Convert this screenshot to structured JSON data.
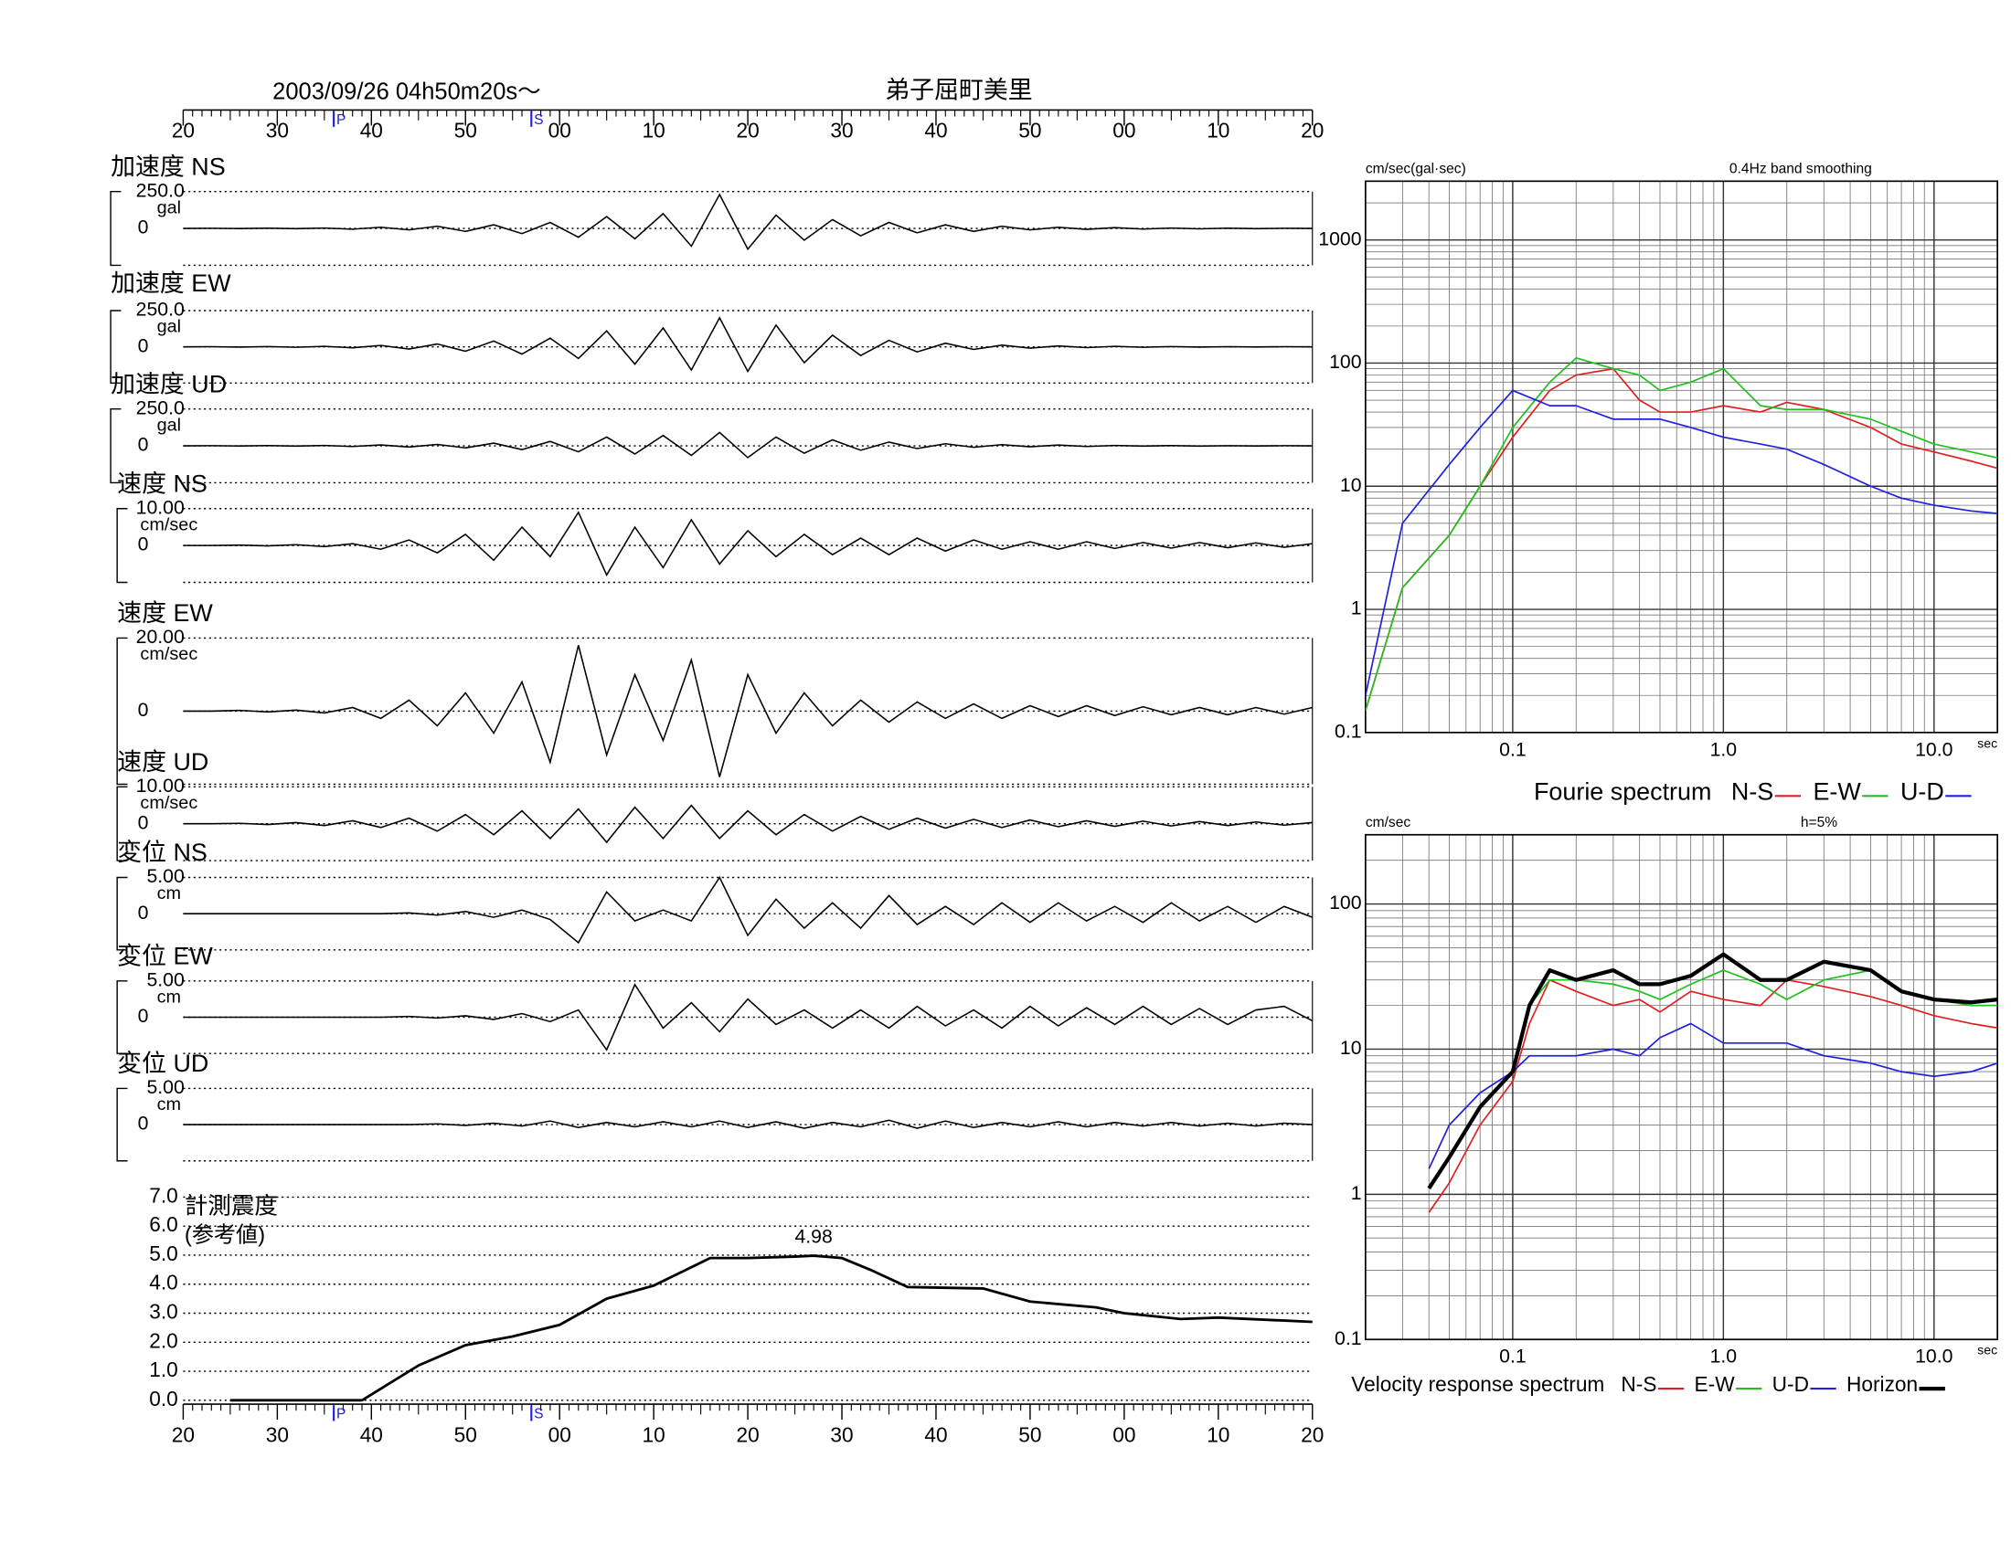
{
  "chart_data": [
    {
      "type": "waveform",
      "title": "2003/09/26  04h50m20s〜",
      "location": "弟子屈町美里",
      "xlim": [
        20,
        140
      ],
      "xticks": [
        20,
        30,
        40,
        50,
        {
          "value": 60,
          "label": "00"
        },
        {
          "value": 70,
          "label": "10"
        },
        {
          "value": 80,
          "label": "20"
        },
        {
          "value": 90,
          "label": "30"
        },
        {
          "value": 100,
          "label": "40"
        },
        {
          "value": 110,
          "label": "50"
        },
        {
          "value": 120,
          "label": "00"
        },
        {
          "value": 130,
          "label": "10"
        },
        {
          "value": 140,
          "label": "20"
        }
      ],
      "phases": [
        {
          "label": "P",
          "x": 36
        },
        {
          "label": "S",
          "x": 57
        }
      ],
      "x": [
        20,
        23,
        26,
        29,
        32,
        35,
        38,
        41,
        44,
        47,
        50,
        53,
        56,
        59,
        62,
        65,
        68,
        71,
        74,
        77,
        80,
        83,
        86,
        89,
        92,
        95,
        98,
        101,
        104,
        107,
        110,
        113,
        116,
        119,
        122,
        125,
        128,
        131,
        134,
        137,
        140
      ],
      "panels": [
        {
          "name": "加速度 NS",
          "unit": "gal",
          "ylim": [
            -250,
            250
          ],
          "yticks": [
            0,
            {
              "value": 250,
              "label": "250.0"
            }
          ],
          "values": [
            0,
            1,
            -1,
            2,
            -2,
            3,
            -5,
            8,
            -10,
            15,
            -20,
            25,
            -35,
            40,
            -60,
            80,
            -70,
            100,
            -120,
            230,
            -140,
            90,
            -80,
            60,
            -50,
            40,
            -30,
            25,
            -20,
            15,
            -10,
            8,
            -6,
            5,
            -4,
            3,
            -3,
            2,
            -2,
            1,
            0
          ]
        },
        {
          "name": "加速度 EW",
          "unit": "gal",
          "ylim": [
            -250,
            250
          ],
          "yticks": [
            0,
            {
              "value": 250,
              "label": "250.0"
            }
          ],
          "values": [
            0,
            1,
            -2,
            2,
            -3,
            4,
            -6,
            10,
            -15,
            20,
            -30,
            40,
            -50,
            60,
            -80,
            110,
            -120,
            130,
            -160,
            200,
            -170,
            150,
            -110,
            80,
            -60,
            45,
            -35,
            25,
            -18,
            12,
            -9,
            6,
            -5,
            4,
            -3,
            2,
            -2,
            1,
            -1,
            1,
            0
          ]
        },
        {
          "name": "加速度 UD",
          "unit": "gal",
          "ylim": [
            -250,
            250
          ],
          "yticks": [
            0,
            {
              "value": 250,
              "label": "250.0"
            }
          ],
          "values": [
            0,
            1,
            -1,
            2,
            -2,
            3,
            -4,
            6,
            -8,
            10,
            -14,
            18,
            -25,
            30,
            -40,
            60,
            -55,
            70,
            -65,
            90,
            -80,
            60,
            -50,
            40,
            -30,
            25,
            -18,
            14,
            -10,
            8,
            -6,
            5,
            -4,
            3,
            -2,
            2,
            -2,
            1,
            -1,
            1,
            0
          ]
        },
        {
          "name": "速度 NS",
          "unit": "cm/sec",
          "ylim": [
            -10,
            10
          ],
          "yticks": [
            0,
            {
              "value": 10,
              "label": "10.00"
            }
          ],
          "values": [
            0,
            0,
            0.1,
            -0.1,
            0.2,
            -0.3,
            0.5,
            -1,
            1.5,
            -2,
            3,
            -4,
            5,
            -3,
            9,
            -8,
            5,
            -6,
            7,
            -5,
            4,
            -3,
            3,
            -2.5,
            2,
            -2.5,
            2,
            -1.5,
            1.5,
            -1,
            1,
            -1,
            1,
            -0.8,
            0.8,
            -0.7,
            0.8,
            -0.6,
            0.7,
            -0.5,
            0.5
          ]
        },
        {
          "name": "速度 EW",
          "unit": "cm/sec",
          "ylim": [
            -20,
            20
          ],
          "yticks": [
            0,
            {
              "value": 20,
              "label": "20.00"
            }
          ],
          "values": [
            0,
            0,
            0.2,
            -0.2,
            0.3,
            -0.5,
            1,
            -2,
            3,
            -4,
            5,
            -6,
            8,
            -14,
            18,
            -12,
            10,
            -8,
            14,
            -18,
            10,
            -6,
            5,
            -4,
            3,
            -3,
            2.5,
            -2,
            2,
            -2,
            1.5,
            -1.5,
            1.5,
            -1.2,
            1.2,
            -1,
            1,
            -1,
            1,
            -0.8,
            1
          ]
        },
        {
          "name": "速度 UD",
          "unit": "cm/sec",
          "ylim": [
            -10,
            10
          ],
          "yticks": [
            0,
            {
              "value": 10,
              "label": "10.00"
            }
          ],
          "values": [
            0,
            0,
            0.1,
            -0.2,
            0.3,
            -0.5,
            0.8,
            -1,
            1.5,
            -2,
            2.5,
            -3,
            3.5,
            -4,
            4,
            -5,
            4.5,
            -4,
            5,
            -4,
            3.5,
            -3,
            2.5,
            -2,
            2,
            -1.5,
            1.5,
            -1.2,
            1.2,
            -1,
            1,
            -0.8,
            0.8,
            -0.7,
            0.7,
            -0.6,
            0.6,
            -0.5,
            0.5,
            -0.4,
            0.3
          ]
        },
        {
          "name": "変位 NS",
          "unit": "cm",
          "ylim": [
            -5,
            5
          ],
          "yticks": [
            0,
            {
              "value": 5,
              "label": "5.00"
            }
          ],
          "values": [
            0,
            0,
            0,
            0,
            0,
            0,
            0,
            0,
            0.1,
            -0.2,
            0.3,
            -0.5,
            0.5,
            -0.8,
            -4,
            3,
            -1,
            0.5,
            -1,
            5,
            -3,
            2,
            -2,
            1.5,
            -2,
            2.5,
            -1.5,
            1,
            -1.5,
            1.5,
            -1.2,
            1.5,
            -1,
            1,
            -1.2,
            1.5,
            -1,
            1,
            -1.2,
            1,
            -0.5
          ]
        },
        {
          "name": "変位 EW",
          "unit": "cm",
          "ylim": [
            -5,
            5
          ],
          "yticks": [
            0,
            {
              "value": 5,
              "label": "5.00"
            }
          ],
          "values": [
            0,
            0,
            0,
            0,
            0,
            0,
            0,
            0,
            0.1,
            -0.1,
            0.2,
            -0.3,
            0.5,
            -0.6,
            1,
            -4.5,
            4.5,
            -1.5,
            2,
            -2,
            2.5,
            -1,
            1,
            -1.5,
            1,
            -1.5,
            1.5,
            -1.2,
            1,
            -1.5,
            1.5,
            -1.2,
            1.3,
            -1,
            1.5,
            -1,
            1.2,
            -1,
            1,
            1.5,
            -0.5
          ]
        },
        {
          "name": "変位 UD",
          "unit": "cm",
          "ylim": [
            -5,
            5
          ],
          "yticks": [
            0,
            {
              "value": 5,
              "label": "5.00"
            }
          ],
          "values": [
            0,
            0,
            0,
            0,
            0,
            0,
            0,
            0,
            0,
            0.1,
            -0.1,
            0.2,
            -0.2,
            0.5,
            -0.4,
            0.3,
            -0.3,
            0.4,
            -0.3,
            0.5,
            -0.4,
            0.4,
            -0.5,
            0.3,
            -0.3,
            0.6,
            -0.5,
            0.5,
            -0.4,
            0.3,
            -0.3,
            0.4,
            -0.3,
            0.3,
            -0.2,
            0.3,
            -0.2,
            0.2,
            -0.2,
            0.2,
            0
          ]
        }
      ]
    },
    {
      "type": "intensity",
      "label": "計測震度",
      "sublabel": "(参考値)",
      "xlim": [
        20,
        140
      ],
      "xticks": [
        20,
        30,
        40,
        50,
        {
          "value": 60,
          "label": "00"
        },
        {
          "value": 70,
          "label": "10"
        },
        {
          "value": 80,
          "label": "20"
        },
        {
          "value": 90,
          "label": "30"
        },
        {
          "value": 100,
          "label": "40"
        },
        {
          "value": 110,
          "label": "50"
        },
        {
          "value": 120,
          "label": "00"
        },
        {
          "value": 130,
          "label": "10"
        },
        {
          "value": 140,
          "label": "20"
        }
      ],
      "phases": [
        {
          "label": "P",
          "x": 36
        },
        {
          "label": "S",
          "x": 57
        }
      ],
      "ylim": [
        0,
        7
      ],
      "yticks": [
        {
          "value": 0,
          "label": "0.0"
        },
        {
          "value": 1,
          "label": "1.0"
        },
        {
          "value": 2,
          "label": "2.0"
        },
        {
          "value": 3,
          "label": "3.0"
        },
        {
          "value": 4,
          "label": "4.0"
        },
        {
          "value": 5,
          "label": "5.0"
        },
        {
          "value": 6,
          "label": "6.0"
        },
        {
          "value": 7,
          "label": "7.0"
        }
      ],
      "x": [
        25,
        39,
        45,
        50,
        55,
        60,
        65,
        70,
        76,
        80,
        85,
        87,
        90,
        93,
        97,
        105,
        110,
        117,
        120,
        126,
        130,
        140
      ],
      "values": [
        0,
        0,
        1.2,
        1.9,
        2.2,
        2.6,
        3.5,
        3.95,
        4.9,
        4.9,
        4.95,
        4.98,
        4.9,
        4.5,
        3.9,
        3.85,
        3.4,
        3.2,
        3.0,
        2.8,
        2.85,
        2.7
      ],
      "color": "#000000"
    },
    {
      "type": "loglog",
      "title": "Fourie spectrum",
      "y_label": "cm/sec(gal·sec)",
      "note": "0.4Hz band smoothing",
      "x_unit": "sec",
      "log_x": true,
      "log_y": true,
      "grid": true,
      "xlim": [
        0.02,
        20
      ],
      "ylim": [
        0.1,
        3000
      ],
      "xticks": [
        0.1,
        {
          "value": 1,
          "label": "1.0"
        },
        {
          "value": 10,
          "label": "10.0"
        }
      ],
      "yticks": [
        0.1,
        1,
        10,
        100,
        1000
      ],
      "x": [
        0.02,
        0.03,
        0.05,
        0.07,
        0.1,
        0.15,
        0.2,
        0.3,
        0.4,
        0.5,
        0.7,
        1,
        1.5,
        2,
        3,
        5,
        7,
        10,
        15,
        20
      ],
      "series": [
        {
          "name": "N-S",
          "color": "#e02020",
          "values": [
            0.15,
            1.5,
            4,
            10,
            25,
            60,
            80,
            90,
            50,
            40,
            40,
            45,
            40,
            48,
            42,
            30,
            22,
            19,
            16,
            14
          ]
        },
        {
          "name": "E-W",
          "color": "#20c020",
          "values": [
            0.15,
            1.5,
            4,
            10,
            30,
            70,
            110,
            90,
            80,
            60,
            70,
            90,
            45,
            42,
            42,
            35,
            28,
            22,
            19,
            17
          ]
        },
        {
          "name": "U-D",
          "color": "#2020e0",
          "values": [
            0.2,
            5,
            15,
            30,
            60,
            45,
            45,
            35,
            35,
            35,
            30,
            25,
            22,
            20,
            15,
            10,
            8,
            7,
            6.3,
            6
          ]
        }
      ]
    },
    {
      "type": "loglog",
      "title": "Velocity response spectrum",
      "y_label": "cm/sec",
      "note": "h=5%",
      "x_unit": "sec",
      "log_x": true,
      "log_y": true,
      "grid": true,
      "xlim": [
        0.02,
        20
      ],
      "ylim": [
        0.1,
        300
      ],
      "xticks": [
        0.1,
        {
          "value": 1,
          "label": "1.0"
        },
        {
          "value": 10,
          "label": "10.0"
        }
      ],
      "yticks": [
        0.1,
        1,
        10,
        100
      ],
      "x": [
        0.04,
        0.05,
        0.07,
        0.1,
        0.12,
        0.15,
        0.2,
        0.3,
        0.4,
        0.5,
        0.7,
        1,
        1.5,
        2,
        3,
        5,
        7,
        10,
        15,
        20
      ],
      "series": [
        {
          "name": "N-S",
          "color": "#e02020",
          "values": [
            0.75,
            1.2,
            3,
            6,
            15,
            30,
            25,
            20,
            22,
            18,
            25,
            22,
            20,
            30,
            27,
            23,
            20,
            17,
            15,
            14
          ]
        },
        {
          "name": "E-W",
          "color": "#20c020",
          "values": [
            1.1,
            1.8,
            4,
            7,
            20,
            30,
            30,
            28,
            25,
            22,
            28,
            35,
            28,
            22,
            30,
            35,
            25,
            22,
            20,
            20
          ]
        },
        {
          "name": "U-D",
          "color": "#2020e0",
          "values": [
            1.5,
            3,
            5,
            7,
            9,
            9,
            9,
            10,
            9,
            12,
            15,
            11,
            11,
            11,
            9,
            8,
            7,
            6.5,
            7,
            8
          ]
        },
        {
          "name": "Horizon",
          "color": "#000000",
          "line_width": 3,
          "values": [
            1.1,
            1.8,
            4,
            7,
            20,
            35,
            30,
            35,
            28,
            28,
            32,
            45,
            30,
            30,
            40,
            35,
            25,
            22,
            21,
            22
          ]
        }
      ]
    }
  ]
}
